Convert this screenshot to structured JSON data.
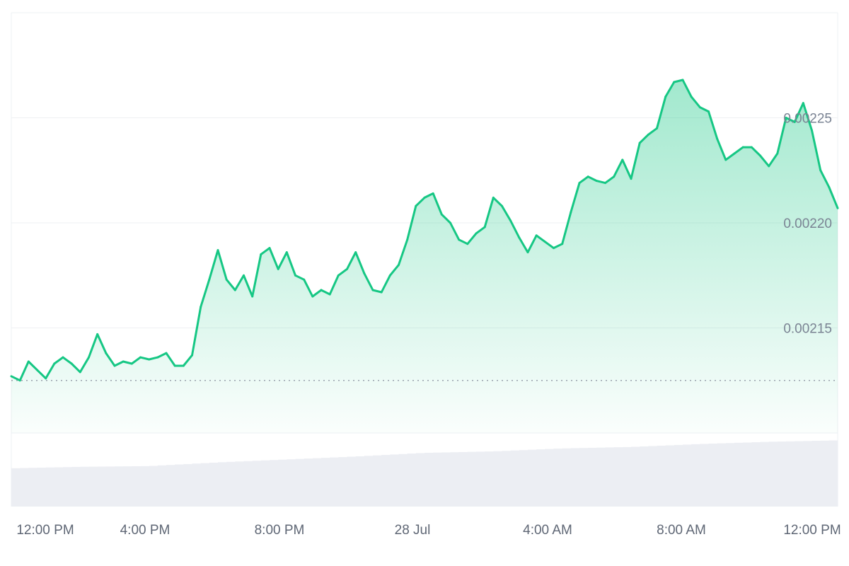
{
  "chart_data": {
    "type": "area",
    "title": "",
    "xlabel": "",
    "ylabel": "",
    "x_tick_labels": [
      "12:00 PM",
      "4:00 PM",
      "8:00 PM",
      "28 Jul",
      "4:00 AM",
      "8:00 AM",
      "12:00 PM"
    ],
    "y_tick_labels": [
      "0.00215",
      "0.00220",
      "0.00225"
    ],
    "y_ticks": [
      0.00215,
      0.0022,
      0.00225
    ],
    "ylim": [
      0.0021,
      0.0023
    ],
    "baseline": 0.002125,
    "colors": {
      "up_line": "#16c784",
      "down_line": "#ea3943",
      "fill_top": "#16c784",
      "baseline_dots": "#9aa1ac",
      "grid": "#eef0f3",
      "volume": "#eceef3"
    },
    "price_series": {
      "x_hours_from_start": [
        0,
        0.5,
        1,
        1.5,
        2,
        2.5,
        3,
        3.5,
        4,
        4.5,
        5,
        5.5,
        6,
        6.5,
        7,
        7.5,
        8,
        8.5,
        9,
        9.5,
        10,
        10.5,
        11,
        11.5,
        12,
        12.5,
        13,
        13.5,
        14,
        14.5,
        15,
        15.5,
        16,
        16.5,
        17,
        17.5,
        18,
        18.5,
        19,
        19.5,
        20,
        20.5,
        21,
        21.5,
        22,
        22.5,
        23,
        23.5,
        24,
        24.5,
        25,
        25.5,
        26,
        26.5,
        27,
        27.5,
        28,
        28.5,
        29,
        29.5,
        30,
        30.5,
        31,
        31.5,
        32,
        32.5,
        33,
        33.5,
        34,
        34.5,
        35,
        35.5,
        36,
        36.5,
        37,
        37.5,
        38,
        38.5,
        39,
        39.5,
        40,
        40.5,
        41,
        41.5,
        42,
        42.5,
        43,
        43.5,
        44,
        44.5,
        45,
        45.5,
        46,
        46.5,
        47,
        47.5,
        48
      ],
      "y": [
        0.002127,
        0.002125,
        0.002134,
        0.00213,
        0.002126,
        0.002133,
        0.002136,
        0.002133,
        0.002129,
        0.002136,
        0.002147,
        0.002138,
        0.002132,
        0.002134,
        0.002133,
        0.002136,
        0.002135,
        0.002136,
        0.002138,
        0.002132,
        0.002132,
        0.002137,
        0.00216,
        0.002173,
        0.002187,
        0.002173,
        0.002168,
        0.002175,
        0.002165,
        0.002185,
        0.002188,
        0.002178,
        0.002186,
        0.002175,
        0.002173,
        0.002165,
        0.002168,
        0.002166,
        0.002175,
        0.002178,
        0.002186,
        0.002176,
        0.002168,
        0.002167,
        0.002175,
        0.00218,
        0.002192,
        0.002208,
        0.002212,
        0.002214,
        0.002204,
        0.0022,
        0.002192,
        0.00219,
        0.002195,
        0.002198,
        0.002212,
        0.002208,
        0.002201,
        0.002193,
        0.002186,
        0.002194,
        0.002191,
        0.002188,
        0.00219,
        0.002205,
        0.002219,
        0.002222,
        0.00222,
        0.002219,
        0.002222,
        0.00223,
        0.002221,
        0.002238,
        0.002242,
        0.002245,
        0.00226,
        0.002267,
        0.002268,
        0.00226,
        0.002255,
        0.002253,
        0.00224,
        0.00223,
        0.002233,
        0.002236,
        0.002236,
        0.002232,
        0.002227,
        0.002233,
        0.00225,
        0.002248,
        0.002257,
        0.002244,
        0.002225,
        0.002217,
        0.002207
      ]
    },
    "volume_series": {
      "x_hours_from_start": [
        0,
        4,
        8,
        12,
        16,
        20,
        24,
        28,
        32,
        36,
        40,
        44,
        48
      ],
      "values": [
        0.52,
        0.54,
        0.55,
        0.6,
        0.64,
        0.68,
        0.73,
        0.75,
        0.79,
        0.81,
        0.85,
        0.88,
        0.9
      ]
    }
  }
}
